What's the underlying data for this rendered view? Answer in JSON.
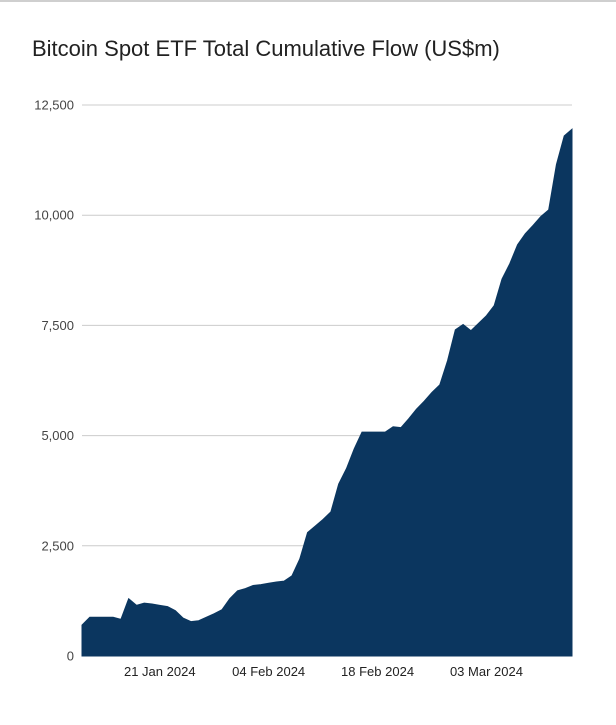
{
  "chart_data": {
    "type": "area",
    "title": "Bitcoin Spot ETF Total Cumulative Flow (US$m)",
    "xlabel": "",
    "ylabel": "",
    "ylim": [
      0,
      12500
    ],
    "yticks": [
      "0",
      "2,500",
      "5,000",
      "7,500",
      "10,000",
      "12,500"
    ],
    "yticks_values": [
      0,
      2500,
      5000,
      7500,
      10000,
      12500
    ],
    "xticks": [
      "21 Jan 2024",
      "04 Feb 2024",
      "18 Feb 2024",
      "03 Mar 2024"
    ],
    "xticks_values": [
      "2024-01-21",
      "2024-02-04",
      "2024-02-18",
      "2024-03-03"
    ],
    "xlim": [
      "2024-01-11",
      "2024-03-14"
    ],
    "grid": true,
    "legend": "none",
    "color": "#0b365f",
    "series": [
      {
        "x": [
          "2024-01-11",
          "2024-01-12",
          "2024-01-13",
          "2024-01-14",
          "2024-01-15",
          "2024-01-16",
          "2024-01-17",
          "2024-01-18",
          "2024-01-19",
          "2024-01-20",
          "2024-01-21",
          "2024-01-22",
          "2024-01-23",
          "2024-01-24",
          "2024-01-25",
          "2024-01-26",
          "2024-01-27",
          "2024-01-28",
          "2024-01-29",
          "2024-01-30",
          "2024-01-31",
          "2024-02-01",
          "2024-02-02",
          "2024-02-03",
          "2024-02-04",
          "2024-02-05",
          "2024-02-06",
          "2024-02-07",
          "2024-02-08",
          "2024-02-09",
          "2024-02-10",
          "2024-02-11",
          "2024-02-12",
          "2024-02-13",
          "2024-02-14",
          "2024-02-15",
          "2024-02-16",
          "2024-02-17",
          "2024-02-18",
          "2024-02-19",
          "2024-02-20",
          "2024-02-21",
          "2024-02-22",
          "2024-02-23",
          "2024-02-24",
          "2024-02-25",
          "2024-02-26",
          "2024-02-27",
          "2024-02-28",
          "2024-02-29",
          "2024-03-01",
          "2024-03-02",
          "2024-03-03",
          "2024-03-04",
          "2024-03-05",
          "2024-03-06",
          "2024-03-07",
          "2024-03-08",
          "2024-03-09",
          "2024-03-10",
          "2024-03-11",
          "2024-03-12",
          "2024-03-13",
          "2024-03-14"
        ],
        "values": [
          700,
          880,
          880,
          880,
          880,
          830,
          1300,
          1150,
          1200,
          1180,
          1150,
          1120,
          1030,
          860,
          780,
          800,
          880,
          960,
          1050,
          1300,
          1480,
          1530,
          1600,
          1620,
          1650,
          1680,
          1700,
          1820,
          2200,
          2800,
          2950,
          3100,
          3270,
          3900,
          4250,
          4700,
          5080,
          5080,
          5080,
          5080,
          5200,
          5180,
          5380,
          5600,
          5780,
          5980,
          6150,
          6700,
          7400,
          7520,
          7380,
          7550,
          7720,
          7950,
          8550,
          8900,
          9330,
          9580,
          9770,
          9970,
          10120,
          11150,
          11800,
          11950
        ]
      }
    ]
  }
}
